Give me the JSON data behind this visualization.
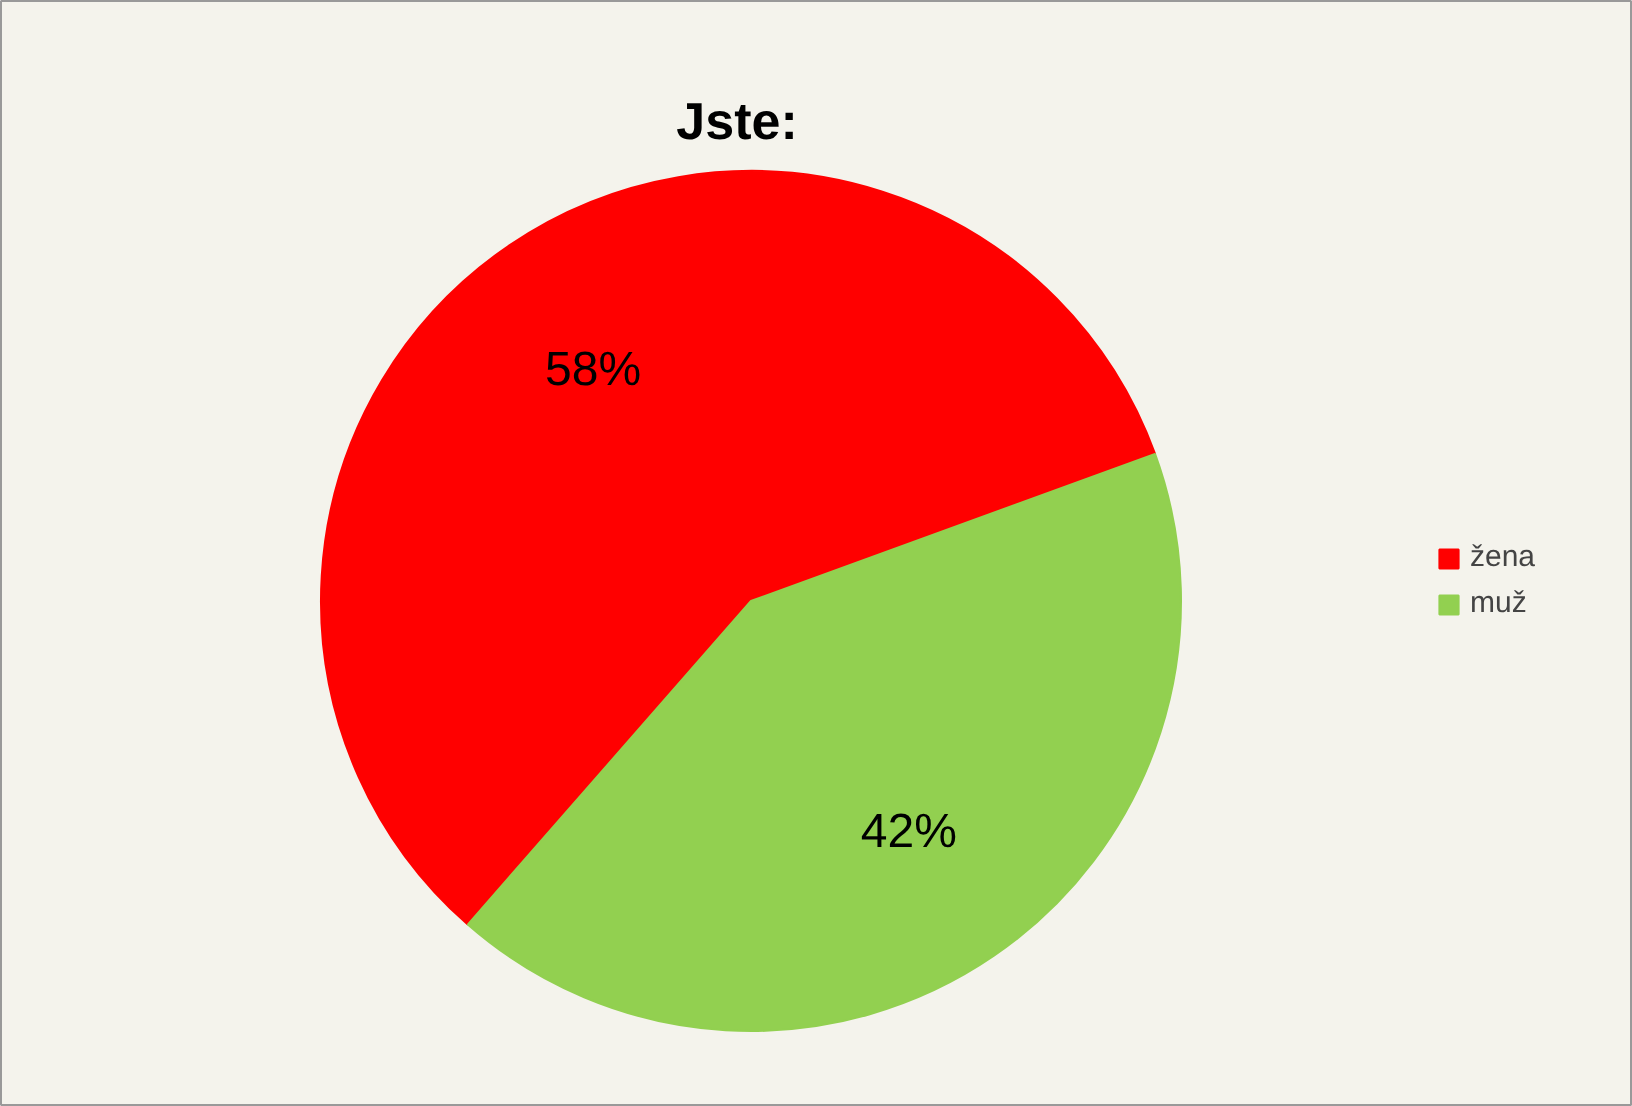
{
  "chart_data": {
    "type": "pie",
    "title": "Jste:",
    "categories": [
      "žena",
      "muž"
    ],
    "values": [
      58,
      42
    ],
    "colors": [
      "#ff0000",
      "#92d050"
    ],
    "value_labels": [
      "58%",
      "42%"
    ],
    "legend": "right"
  }
}
